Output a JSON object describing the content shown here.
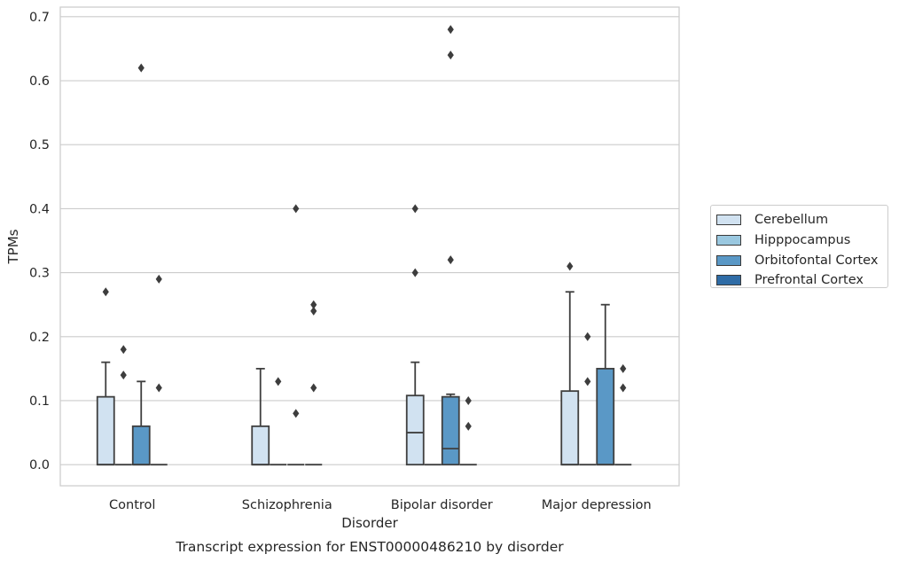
{
  "chart_data": {
    "type": "box",
    "caption": "Transcript expression for ENST00000486210 by disorder",
    "xlabel": "Disorder",
    "ylabel": "TPMs",
    "ylim": [
      -0.033,
      0.715
    ],
    "yticks": [
      0.0,
      0.1,
      0.2,
      0.3,
      0.4,
      0.5,
      0.6,
      0.7
    ],
    "ytick_labels": [
      "0.0",
      "0.1",
      "0.2",
      "0.3",
      "0.4",
      "0.5",
      "0.6",
      "0.7"
    ],
    "grid": true,
    "legend_position": "right",
    "categories": [
      "Control",
      "Schizophrenia",
      "Bipolar disorder",
      "Major depression"
    ],
    "series": [
      {
        "name": "Cerebellum",
        "color": "#d1e2f1",
        "boxes": [
          {
            "q1": 0,
            "median": 0,
            "q3": 0.106,
            "whisker_low": 0,
            "whisker_high": 0.16,
            "outliers": [
              0.27
            ]
          },
          {
            "q1": 0,
            "median": 0,
            "q3": 0.06,
            "whisker_low": 0,
            "whisker_high": 0.15,
            "outliers": []
          },
          {
            "q1": 0,
            "median": 0.05,
            "q3": 0.108,
            "whisker_low": 0,
            "whisker_high": 0.16,
            "outliers": [
              0.3,
              0.4
            ]
          },
          {
            "q1": 0,
            "median": 0,
            "q3": 0.115,
            "whisker_low": 0,
            "whisker_high": 0.27,
            "outliers": [
              0.31
            ]
          }
        ]
      },
      {
        "name": "Hipppocampus",
        "color": "#9ac8e0",
        "boxes": [
          {
            "q1": 0,
            "median": 0,
            "q3": 0,
            "whisker_low": 0,
            "whisker_high": 0,
            "outliers": [
              0.14,
              0.18
            ]
          },
          {
            "q1": 0,
            "median": 0,
            "q3": 0,
            "whisker_low": 0,
            "whisker_high": 0,
            "outliers": [
              0.13
            ]
          },
          {
            "q1": 0,
            "median": 0,
            "q3": 0,
            "whisker_low": 0,
            "whisker_high": 0,
            "outliers": []
          },
          {
            "q1": 0,
            "median": 0,
            "q3": 0,
            "whisker_low": 0,
            "whisker_high": 0,
            "outliers": [
              0.13,
              0.2
            ]
          }
        ]
      },
      {
        "name": "Orbitofontal Cortex",
        "color": "#5a98c6",
        "boxes": [
          {
            "q1": 0,
            "median": 0,
            "q3": 0.06,
            "whisker_low": 0,
            "whisker_high": 0.13,
            "outliers": [
              0.62
            ]
          },
          {
            "q1": 0,
            "median": 0,
            "q3": 0,
            "whisker_low": 0,
            "whisker_high": 0,
            "outliers": [
              0.08,
              0.4
            ]
          },
          {
            "q1": 0,
            "median": 0.025,
            "q3": 0.106,
            "whisker_low": 0,
            "whisker_high": 0.11,
            "outliers": [
              0.32,
              0.64,
              0.68
            ]
          },
          {
            "q1": 0,
            "median": 0,
            "q3": 0.15,
            "whisker_low": 0,
            "whisker_high": 0.25,
            "outliers": []
          }
        ]
      },
      {
        "name": "Prefrontal Cortex",
        "color": "#2f6ca6",
        "boxes": [
          {
            "q1": 0,
            "median": 0,
            "q3": 0,
            "whisker_low": 0,
            "whisker_high": 0,
            "outliers": [
              0.12,
              0.29
            ]
          },
          {
            "q1": 0,
            "median": 0,
            "q3": 0,
            "whisker_low": 0,
            "whisker_high": 0,
            "outliers": [
              0.12,
              0.24,
              0.25
            ]
          },
          {
            "q1": 0,
            "median": 0,
            "q3": 0,
            "whisker_low": 0,
            "whisker_high": 0,
            "outliers": [
              0.06,
              0.1
            ]
          },
          {
            "q1": 0,
            "median": 0,
            "q3": 0,
            "whisker_low": 0,
            "whisker_high": 0,
            "outliers": [
              0.12,
              0.15
            ]
          }
        ]
      }
    ]
  }
}
